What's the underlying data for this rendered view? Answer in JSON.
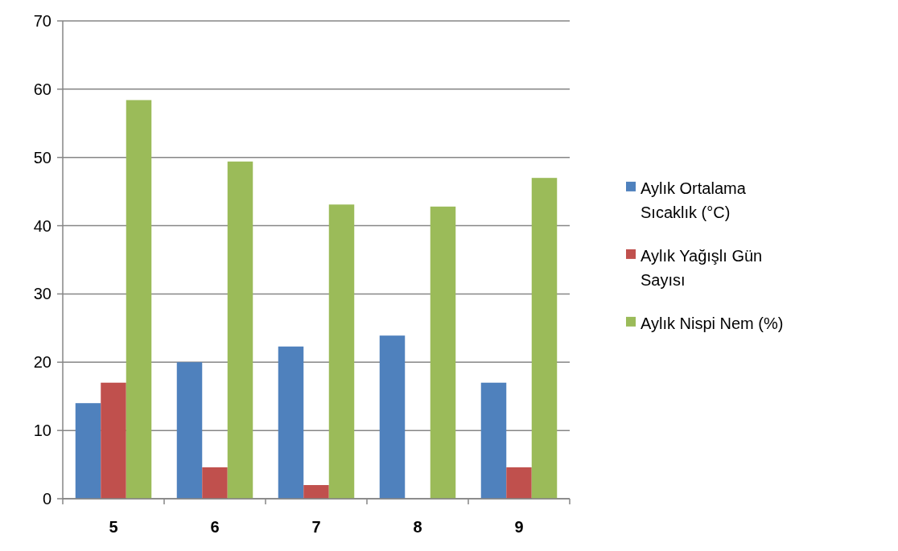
{
  "chart_data": {
    "type": "bar",
    "categories": [
      "5",
      "6",
      "7",
      "8",
      "9"
    ],
    "series": [
      {
        "name": "Aylık Ortalama Sıcaklık (°C)",
        "color": "#4f81bd",
        "values": [
          14.0,
          20.0,
          22.3,
          23.9,
          17.0
        ]
      },
      {
        "name": "Aylık Yağışlı Gün Sayısı",
        "color": "#c0504d",
        "values": [
          17.0,
          4.6,
          2.0,
          0,
          4.6
        ]
      },
      {
        "name": "Aylık Nispi Nem (%)",
        "color": "#9bbb59",
        "values": [
          58.4,
          49.4,
          43.1,
          42.8,
          47.0
        ]
      }
    ],
    "ylim": [
      0,
      70
    ],
    "yticks": [
      0,
      10,
      20,
      30,
      40,
      50,
      60,
      70
    ],
    "grid": "y",
    "legend": "right"
  }
}
